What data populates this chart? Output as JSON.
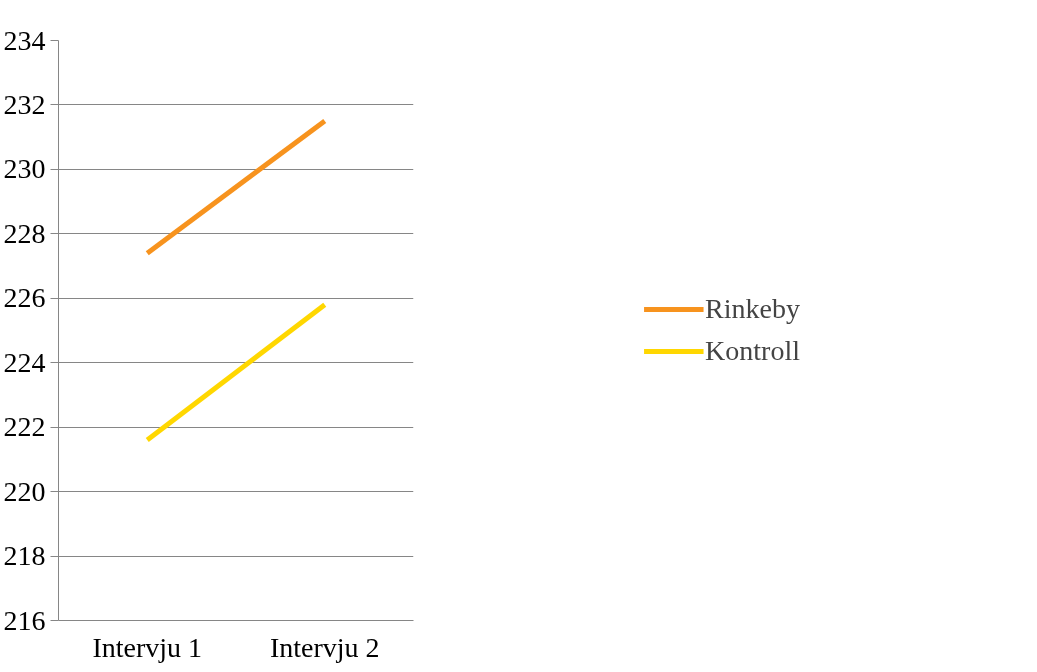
{
  "chart_data": {
    "type": "line",
    "categories": [
      "Intervju 1",
      "Intervju 2"
    ],
    "series": [
      {
        "name": "Rinkeby",
        "color": "#f7931e",
        "values": [
          227.4,
          231.5
        ]
      },
      {
        "name": "Kontroll",
        "color": "#ffd700",
        "values": [
          221.6,
          225.8
        ]
      }
    ],
    "ylim": [
      216,
      234
    ],
    "yticks": [
      216,
      218,
      220,
      222,
      224,
      226,
      228,
      230,
      232,
      234
    ],
    "grid": "y",
    "legend": "right",
    "marker": "none",
    "line_style": "solid"
  }
}
